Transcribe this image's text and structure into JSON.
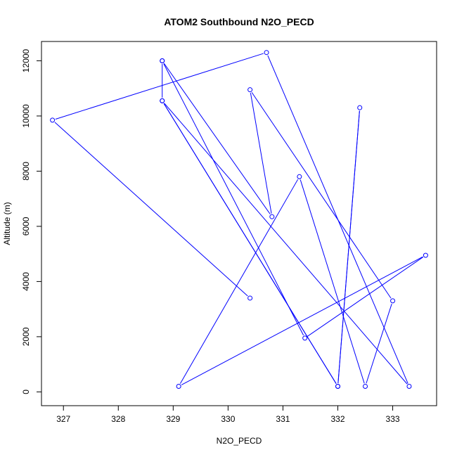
{
  "chart_data": {
    "type": "line",
    "title": "ATOM2 Southbound N2O_PECD",
    "xlabel": "N2O_PECD",
    "ylabel": "Altitude (m)",
    "xlim": [
      326.6,
      333.8
    ],
    "ylim": [
      -500,
      12700
    ],
    "x_ticks": [
      327,
      328,
      329,
      330,
      331,
      332,
      333
    ],
    "y_ticks": [
      0,
      2000,
      4000,
      6000,
      8000,
      10000,
      12000
    ],
    "grid": false,
    "color": "#0000ff",
    "markers": "open-circle",
    "points": [
      {
        "x": 328.8,
        "y": 12000
      },
      {
        "x": 330.8,
        "y": 6350
      },
      {
        "x": 330.4,
        "y": 10950
      },
      {
        "x": 333.0,
        "y": 3300
      },
      {
        "x": 332.5,
        "y": 200
      },
      {
        "x": 331.3,
        "y": 7800
      },
      {
        "x": 329.1,
        "y": 200
      },
      {
        "x": 333.6,
        "y": 4950
      },
      {
        "x": 331.4,
        "y": 1950
      },
      {
        "x": 328.8,
        "y": 12000
      },
      {
        "x": 328.8,
        "y": 10550
      },
      {
        "x": 332.0,
        "y": 200
      },
      {
        "x": 332.4,
        "y": 10300
      },
      {
        "x": 332.0,
        "y": 200
      },
      {
        "x": 328.8,
        "y": 10550
      },
      {
        "x": 333.3,
        "y": 200
      },
      {
        "x": 330.7,
        "y": 12300
      },
      {
        "x": 326.8,
        "y": 9850
      },
      {
        "x": 330.4,
        "y": 3400
      }
    ]
  }
}
